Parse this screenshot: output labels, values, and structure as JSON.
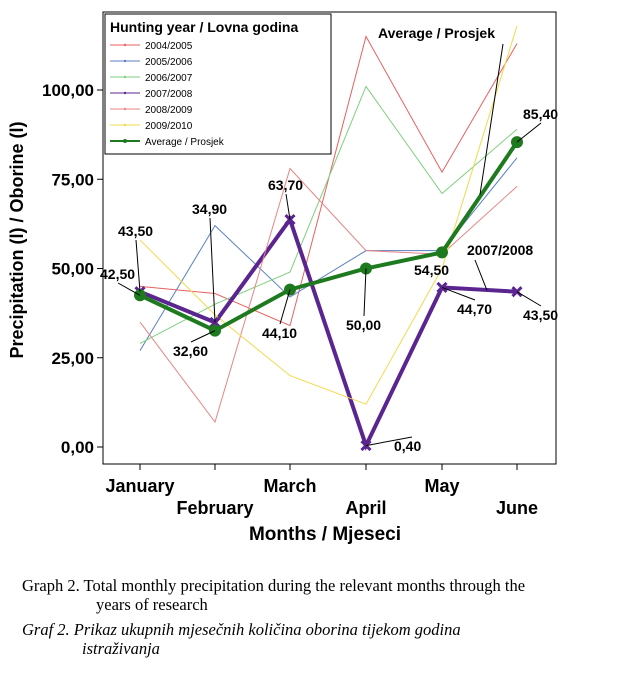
{
  "chart_data": {
    "type": "line",
    "title": "",
    "xlabel": "Months / Mjeseci",
    "ylabel": "Precipitation (l) / Oborine (l)",
    "ylim": [
      -3,
      120
    ],
    "yticks": [
      0,
      25,
      50,
      75,
      100
    ],
    "ytick_labels": [
      "0,00",
      "25,00",
      "50,00",
      "75,00",
      "100,00"
    ],
    "categories": [
      "January",
      "February",
      "March",
      "April",
      "May",
      "June"
    ],
    "legend_title": "Hunting year / Lovna godina",
    "legend_position": "top-left",
    "series": [
      {
        "name": "2004/2005",
        "color": "#e8615f",
        "values": [
          45,
          43,
          34,
          115,
          77,
          113
        ]
      },
      {
        "name": "2005/2006",
        "color": "#5a7fc0",
        "values": [
          27,
          62,
          42,
          55,
          55,
          81
        ]
      },
      {
        "name": "2006/2007",
        "color": "#7fcf7f",
        "values": [
          29,
          40,
          49,
          101,
          71,
          89
        ]
      },
      {
        "name": "2007/2008",
        "color": "#5b2590",
        "values": [
          43.5,
          34.9,
          63.7,
          0.4,
          44.7,
          43.5
        ]
      },
      {
        "name": "2008/2009",
        "color": "#e88585",
        "values": [
          35,
          7,
          78,
          55,
          54,
          73
        ]
      },
      {
        "name": "2009/2010",
        "color": "#f2d94c",
        "values": [
          58,
          37,
          20,
          12,
          50,
          118
        ]
      },
      {
        "name": "Average / Prosjek",
        "color": "#1e7a1e",
        "values": [
          42.5,
          32.6,
          44.1,
          50.0,
          54.5,
          85.4
        ]
      }
    ],
    "data_labels": {
      "2007/2008": [
        "43,50",
        "34,90",
        "63,70",
        "0,40",
        "44,70",
        "43,50"
      ],
      "Average / Prosjek": [
        "42,50",
        "32,60",
        "44,10",
        "50,00",
        "54,50",
        "85,40"
      ]
    },
    "annotations": [
      "Average / Prosjek",
      "2007/2008"
    ]
  },
  "captions": {
    "english_line1": "Graph 2. Total monthly precipitation during the relevant months through the",
    "english_line2": "years of research",
    "croatian_line1": "Graf 2. Prikaz ukupnih mjesečnih količina oborina tijekom godina",
    "croatian_line2": "istraživanja"
  }
}
